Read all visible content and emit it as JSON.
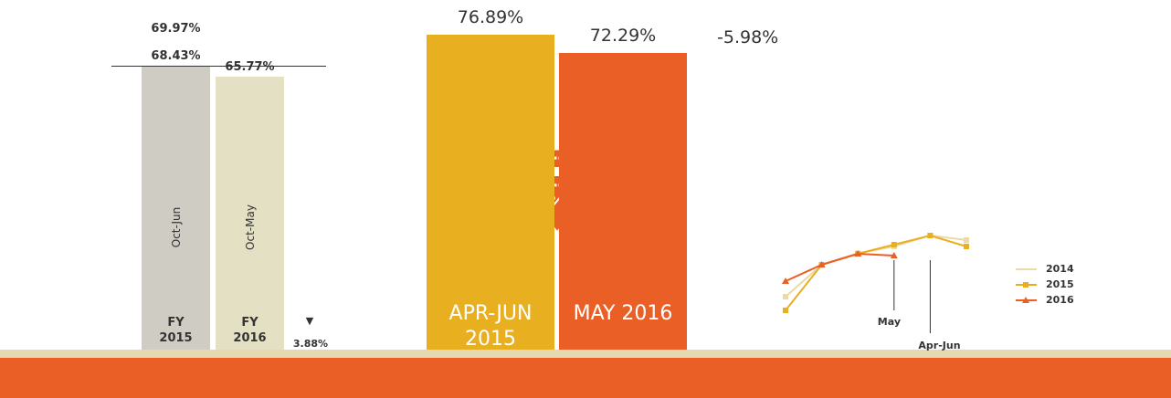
{
  "chart_data": [
    {
      "type": "bar",
      "categories": [
        "FY 2015",
        "FY 2016"
      ],
      "periods": [
        "Oct-Jun",
        "Oct-May"
      ],
      "values": [
        68.43,
        65.77
      ],
      "value_labels": [
        "68.43%",
        "65.77%"
      ],
      "colors": [
        "#cfccc4",
        "#e3e0c3"
      ],
      "annotations": [
        "69.97%"
      ],
      "change": {
        "arrow": "▼",
        "label": "3.88%"
      }
    },
    {
      "type": "bar",
      "categories": [
        "APR-JUN 2015",
        "MAY 2016"
      ],
      "values": [
        76.89,
        72.29
      ],
      "value_labels": [
        "76.89%",
        "72.29%"
      ],
      "colors": [
        "#e8b020",
        "#ea5f25"
      ],
      "change": {
        "label": "-5.98%"
      }
    },
    {
      "type": "line",
      "categories": [
        null,
        null,
        null,
        null,
        null,
        null
      ],
      "ylim": [
        60,
        80
      ],
      "series": [
        {
          "name": "2014",
          "color": "#ecd9a8",
          "values": [
            65,
            72,
            74.5,
            76,
            78.4,
            77.4
          ]
        },
        {
          "name": "2015",
          "color": "#e8b020",
          "values": [
            62,
            72,
            74.4,
            76.4,
            78.4,
            76
          ]
        },
        {
          "name": "2016",
          "color": "#ea5f25",
          "values": [
            68.4,
            72,
            74.4,
            74,
            null,
            null
          ]
        }
      ],
      "annotations": [
        {
          "index": 3,
          "label": "May"
        },
        {
          "index": 4,
          "label": "Apr-Jun"
        }
      ]
    }
  ]
}
